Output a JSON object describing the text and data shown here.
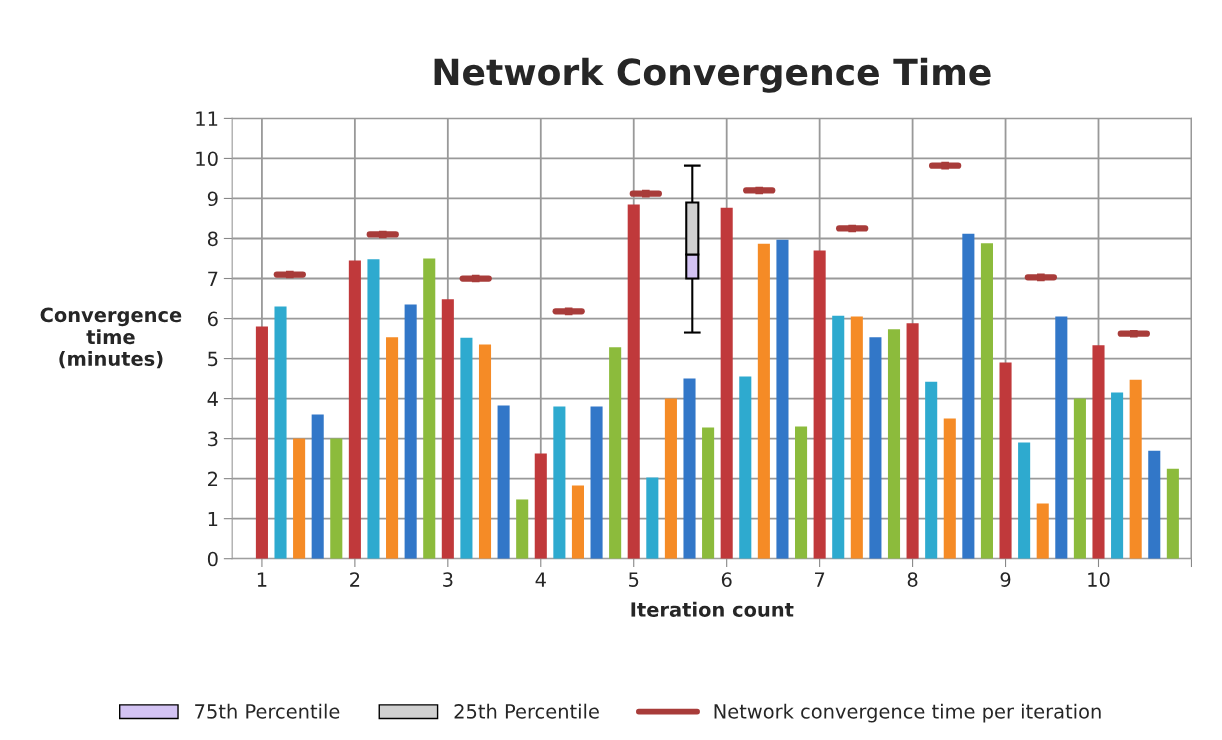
{
  "chart_data": {
    "type": "bar",
    "title": "Network Convergence Time",
    "xlabel": "Iteration count",
    "ylabel": "Convergence\ntime\n(minutes)",
    "xlim": [
      0.68,
      11
    ],
    "xticks": [
      1,
      2,
      3,
      4,
      5,
      6,
      7,
      8,
      9,
      10,
      {
        "value": 11,
        "label": null
      }
    ],
    "ylim": [
      0,
      11
    ],
    "yticks": [
      0,
      1,
      2,
      3,
      4,
      5,
      6,
      7,
      8,
      9,
      10,
      11
    ],
    "grid": true,
    "legend": "bottom",
    "series": [
      {
        "color": "#c0393b",
        "x": [
          1,
          2,
          3,
          4,
          5,
          6,
          7,
          8,
          9,
          10
        ],
        "values": [
          5.8,
          7.45,
          6.48,
          2.63,
          8.85,
          8.77,
          7.7,
          5.88,
          4.9,
          5.33
        ]
      },
      {
        "color": "#2eaacf",
        "x": [
          1.2,
          2.2,
          3.2,
          4.2,
          5.2,
          6.2,
          7.2,
          8.2,
          9.2,
          10.2
        ],
        "values": [
          6.3,
          7.48,
          5.52,
          3.8,
          2.03,
          4.55,
          6.07,
          4.42,
          2.9,
          4.15
        ]
      },
      {
        "color": "#f58b26",
        "x": [
          1.4,
          2.4,
          3.4,
          4.4,
          5.4,
          6.4,
          7.4,
          8.4,
          9.4,
          10.4
        ],
        "values": [
          3.0,
          5.53,
          5.35,
          1.83,
          4.0,
          7.87,
          6.05,
          3.5,
          1.38,
          4.47
        ]
      },
      {
        "color": "#3277c8",
        "x": [
          1.6,
          2.6,
          3.6,
          4.6,
          5.6,
          6.6,
          7.6,
          8.6,
          9.6,
          10.6
        ],
        "values": [
          3.6,
          6.35,
          3.83,
          3.8,
          4.5,
          7.97,
          5.53,
          8.12,
          6.05,
          2.7
        ]
      },
      {
        "color": "#8cbb3c",
        "x": [
          1.8,
          2.8,
          3.8,
          4.8,
          5.8,
          6.8,
          7.8,
          8.8,
          9.8,
          10.8
        ],
        "values": [
          3.0,
          7.5,
          1.48,
          5.28,
          3.28,
          3.3,
          5.73,
          7.88,
          4.0,
          2.25
        ]
      },
      {
        "name": "75th Percentile",
        "color": "#d3c3f3",
        "x": [
          5.63
        ],
        "base": [
          7.0
        ],
        "values": [
          0.6
        ]
      },
      {
        "name": "25th Percentile",
        "color": "#d0d0d0",
        "x": [
          5.63
        ],
        "base": [
          7.6
        ],
        "values": [
          1.3
        ],
        "errors": [
          [
            5.65,
            9.82
          ]
        ]
      },
      {
        "name": "Network convergence time per iteration",
        "type": "scatter",
        "marker": "square",
        "color": "#a83c3a",
        "xerrors": [
          0.14,
          0.14,
          0.14,
          0.14,
          0.14,
          0.14,
          0.14,
          0.14,
          0.14,
          0.14
        ],
        "x": [
          1.3,
          2.3,
          3.3,
          4.3,
          5.13,
          6.35,
          7.35,
          8.35,
          9.38,
          10.38
        ],
        "values": [
          7.1,
          8.1,
          7.0,
          6.18,
          9.12,
          9.2,
          8.25,
          9.82,
          7.03,
          5.62
        ]
      }
    ]
  }
}
